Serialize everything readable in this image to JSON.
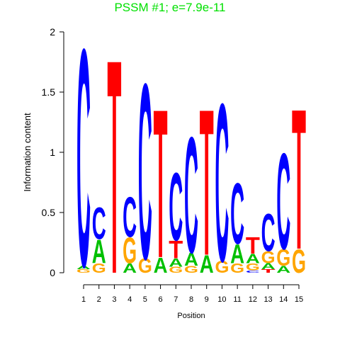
{
  "chart_data": {
    "type": "logo",
    "title": "PSSM #1; e=7.9e-11",
    "xlabel": "Position",
    "ylabel": "Information content",
    "x": [
      1,
      2,
      3,
      4,
      5,
      6,
      7,
      8,
      9,
      10,
      11,
      12,
      13,
      14,
      15
    ],
    "xlim": [
      1,
      15
    ],
    "xticks": [
      1,
      2,
      3,
      4,
      5,
      6,
      7,
      8,
      9,
      10,
      11,
      12,
      13,
      14,
      15
    ],
    "ylim": [
      0,
      2
    ],
    "yticks": [
      0,
      0.5,
      1,
      1.5,
      2
    ],
    "colors": {
      "A": "#00c000",
      "C": "#0000ff",
      "G": "#ffa500",
      "T": "#ff0000"
    },
    "stacks": [
      [
        {
          "letter": "G",
          "value": 0.03
        },
        {
          "letter": "A",
          "value": 0.03
        },
        {
          "letter": "C",
          "value": 1.86
        }
      ],
      [
        {
          "letter": "G",
          "value": 0.08
        },
        {
          "letter": "A",
          "value": 0.2
        },
        {
          "letter": "C",
          "value": 0.27
        }
      ],
      [
        {
          "letter": "T",
          "value": 1.83
        }
      ],
      [
        {
          "letter": "A",
          "value": 0.08
        },
        {
          "letter": "G",
          "value": 0.22
        },
        {
          "letter": "C",
          "value": 0.34
        }
      ],
      [
        {
          "letter": "G",
          "value": 0.12
        },
        {
          "letter": "C",
          "value": 1.5
        }
      ],
      [
        {
          "letter": "A",
          "value": 0.13
        },
        {
          "letter": "T",
          "value": 1.27
        }
      ],
      [
        {
          "letter": "G",
          "value": 0.05
        },
        {
          "letter": "A",
          "value": 0.07
        },
        {
          "letter": "T",
          "value": 0.15
        },
        {
          "letter": "C",
          "value": 0.58
        }
      ],
      [
        {
          "letter": "G",
          "value": 0.06
        },
        {
          "letter": "A",
          "value": 0.11
        },
        {
          "letter": "C",
          "value": 0.99
        }
      ],
      [
        {
          "letter": "A",
          "value": 0.15
        },
        {
          "letter": "T",
          "value": 1.25
        }
      ],
      [
        {
          "letter": "G",
          "value": 0.1
        },
        {
          "letter": "C",
          "value": 1.35
        }
      ],
      [
        {
          "letter": "G",
          "value": 0.08
        },
        {
          "letter": "A",
          "value": 0.16
        },
        {
          "letter": "C",
          "value": 0.52
        }
      ],
      [
        {
          "letter": "C",
          "value": 0.02
        },
        {
          "letter": "G",
          "value": 0.06
        },
        {
          "letter": "A",
          "value": 0.08
        },
        {
          "letter": "T",
          "value": 0.14
        }
      ],
      [
        {
          "letter": "T",
          "value": 0.03
        },
        {
          "letter": "A",
          "value": 0.05
        },
        {
          "letter": "G",
          "value": 0.1
        },
        {
          "letter": "C",
          "value": 0.32
        }
      ],
      [
        {
          "letter": "A",
          "value": 0.06
        },
        {
          "letter": "G",
          "value": 0.14
        },
        {
          "letter": "C",
          "value": 0.82
        }
      ],
      [
        {
          "letter": "G",
          "value": 0.2
        },
        {
          "letter": "T",
          "value": 1.2
        }
      ]
    ]
  }
}
